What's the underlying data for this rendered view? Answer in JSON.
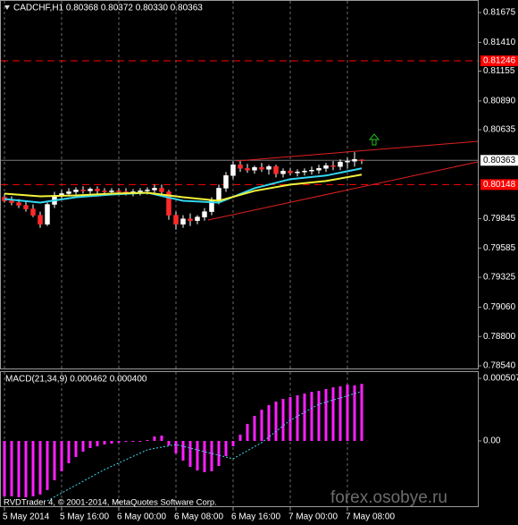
{
  "chart_data": [
    {
      "type": "candlestick",
      "title": "CADCHF,H1  0.80368 0.80372 0.80330 0.80363",
      "open": [
        0.80036,
        0.80004,
        0.79988,
        0.79964,
        0.79932,
        0.79876,
        0.79796,
        0.79972,
        0.80052,
        0.80068,
        0.80084,
        0.801,
        0.80092,
        0.80108,
        0.80092,
        0.80084,
        0.80092,
        0.80084,
        0.80076,
        0.80084,
        0.80092,
        0.801,
        0.80116,
        0.80084,
        0.79876,
        0.79796,
        0.79844,
        0.79828,
        0.7986,
        0.79908,
        0.80004,
        0.80116,
        0.80228,
        0.80324,
        0.80292,
        0.80276,
        0.803,
        0.80284,
        0.80308,
        0.80244,
        0.80268,
        0.80252,
        0.8026,
        0.80268,
        0.80276,
        0.80292,
        0.80316,
        0.80308,
        0.80348,
        0.80356,
        0.80368
      ],
      "high": [
        0.80068,
        0.80044,
        0.8002,
        0.80004,
        0.79972,
        0.79908,
        0.79988,
        0.80084,
        0.801,
        0.80116,
        0.80124,
        0.80132,
        0.80124,
        0.80132,
        0.80116,
        0.80116,
        0.80116,
        0.80116,
        0.80108,
        0.80116,
        0.80124,
        0.80148,
        0.80148,
        0.801,
        0.79908,
        0.79876,
        0.79892,
        0.79876,
        0.7994,
        0.80036,
        0.80148,
        0.8026,
        0.80356,
        0.80356,
        0.80332,
        0.80316,
        0.8034,
        0.80324,
        0.80324,
        0.80292,
        0.80292,
        0.80284,
        0.80292,
        0.80308,
        0.80324,
        0.8034,
        0.80356,
        0.80372,
        0.80388,
        0.80436,
        0.80372
      ],
      "low": [
        0.79988,
        0.79964,
        0.7994,
        0.79908,
        0.7986,
        0.79764,
        0.7978,
        0.7994,
        0.8002,
        0.80044,
        0.8006,
        0.80068,
        0.8006,
        0.80068,
        0.8006,
        0.80052,
        0.8006,
        0.80052,
        0.80044,
        0.80052,
        0.8006,
        0.80068,
        0.80052,
        0.79836,
        0.79748,
        0.79764,
        0.7978,
        0.79796,
        0.79828,
        0.79876,
        0.79972,
        0.80084,
        0.80196,
        0.8026,
        0.80252,
        0.80244,
        0.8026,
        0.80236,
        0.80212,
        0.80212,
        0.80228,
        0.8022,
        0.80228,
        0.80236,
        0.80244,
        0.8026,
        0.80276,
        0.80276,
        0.80292,
        0.80308,
        0.8033
      ],
      "close": [
        0.80004,
        0.79988,
        0.79964,
        0.79932,
        0.79876,
        0.79796,
        0.79972,
        0.80052,
        0.80068,
        0.80084,
        0.801,
        0.80092,
        0.80108,
        0.80092,
        0.80084,
        0.80092,
        0.80084,
        0.80076,
        0.80084,
        0.80092,
        0.801,
        0.80116,
        0.80084,
        0.79876,
        0.79796,
        0.79844,
        0.79828,
        0.7986,
        0.79908,
        0.80004,
        0.80116,
        0.80228,
        0.80324,
        0.80292,
        0.80276,
        0.803,
        0.80284,
        0.80308,
        0.80244,
        0.80268,
        0.80252,
        0.8026,
        0.80268,
        0.80276,
        0.80292,
        0.80316,
        0.80308,
        0.80348,
        0.80356,
        0.80372,
        0.80363
      ],
      "bull_color": "#ffffff",
      "bear_color": "#ff2a2a",
      "wick_color": "#ffffff",
      "lines": [
        {
          "color": "#33d6f0",
          "x": [
            0,
            5,
            10,
            15,
            20,
            25,
            30,
            35,
            40,
            45,
            50
          ],
          "values": [
            0.8002,
            0.79988,
            0.80036,
            0.8006,
            0.80076,
            0.80004,
            0.79988,
            0.80116,
            0.80196,
            0.80228,
            0.80292
          ]
        },
        {
          "color": "#f2f23a",
          "x": [
            0,
            5,
            10,
            15,
            20,
            25,
            30,
            35,
            40,
            45,
            50
          ],
          "values": [
            0.80068,
            0.80044,
            0.80052,
            0.80068,
            0.80076,
            0.80036,
            0.80004,
            0.80092,
            0.80148,
            0.8018,
            0.80236
          ]
        }
      ],
      "hlines": [
        {
          "value": 0.81246,
          "color": "#ff0000"
        },
        {
          "value": 0.80148,
          "color": "#ff0000"
        }
      ],
      "current_price": 0.80363,
      "xlim": [
        -0.625,
        66.25
      ],
      "xticks": [
        {
          "value": 0,
          "label": "5 May 2014"
        },
        {
          "value": 8,
          "label": "5 May 16:00"
        },
        {
          "value": 16,
          "label": "6 May 00:00"
        },
        {
          "value": 24,
          "label": "6 May 08:00"
        },
        {
          "value": 32,
          "label": "6 May 16:00"
        },
        {
          "value": 40,
          "label": "7 May 00:00"
        },
        {
          "value": 48,
          "label": "7 May 08:00"
        }
      ],
      "ylim": [
        0.78516,
        0.81786
      ],
      "yticks": [
        0.81675,
        {
          "value": 0.8141,
          "label": "0.81410"
        },
        0.81155,
        {
          "value": 0.8089,
          "label": "0.80890"
        },
        0.80635,
        0.79845,
        0.79585,
        0.79325,
        {
          "value": 0.7906,
          "label": "0.79060"
        },
        {
          "value": 0.788,
          "label": "0.78800"
        },
        {
          "value": 0.7854,
          "label": "0.78540"
        }
      ],
      "grid": true
    },
    {
      "type": "bar",
      "title": "MACD(21,34,9) 0.000462 0.000400",
      "values": [
        -0.000449,
        -0.000449,
        -0.000456,
        -0.000456,
        -0.000449,
        -0.000434,
        -0.000398,
        -0.000319,
        -0.000246,
        -0.000181,
        -0.00013,
        -8.7e-05,
        -5.8e-05,
        -4.3e-05,
        -2.9e-05,
        -2.2e-05,
        -1.4e-05,
        -7e-06,
        -7e-06,
        -7e-06,
        7e-06,
        3.6e-05,
        4.3e-05,
        -3.6e-05,
        -0.000101,
        -0.000159,
        -0.00021,
        -0.000239,
        -0.000253,
        -0.000246,
        -0.000203,
        -0.000123,
        -4.3e-05,
        5.1e-05,
        0.000138,
        0.000203,
        0.000253,
        0.00029,
        0.000319,
        0.00034,
        0.000355,
        0.000369,
        0.000384,
        0.000398,
        0.000405,
        0.00042,
        0.000434,
        0.000442,
        0.000456,
        0.00045,
        0.000462
      ],
      "color": "#ff20ff",
      "signal": {
        "color": "#40d8f0",
        "x": [
          6,
          14,
          20,
          24,
          28,
          32,
          36,
          40,
          44,
          50
        ],
        "values": [
          -0.000485,
          -0.000232,
          -7.2e-05,
          -2.9e-05,
          -8.7e-05,
          -0.000145,
          -1.4e-05,
          0.000167,
          0.000297,
          0.0004
        ]
      },
      "ylim": [
        -0.000529,
        0.000565
      ],
      "yticks": [
        0.000507,
        {
          "value": 0,
          "label": "0.00"
        }
      ]
    }
  ],
  "footer": "RVDTrader 4, © 2001-2014, MetaQuotes Software Corp.",
  "watermark": "forex.osobye.ru"
}
